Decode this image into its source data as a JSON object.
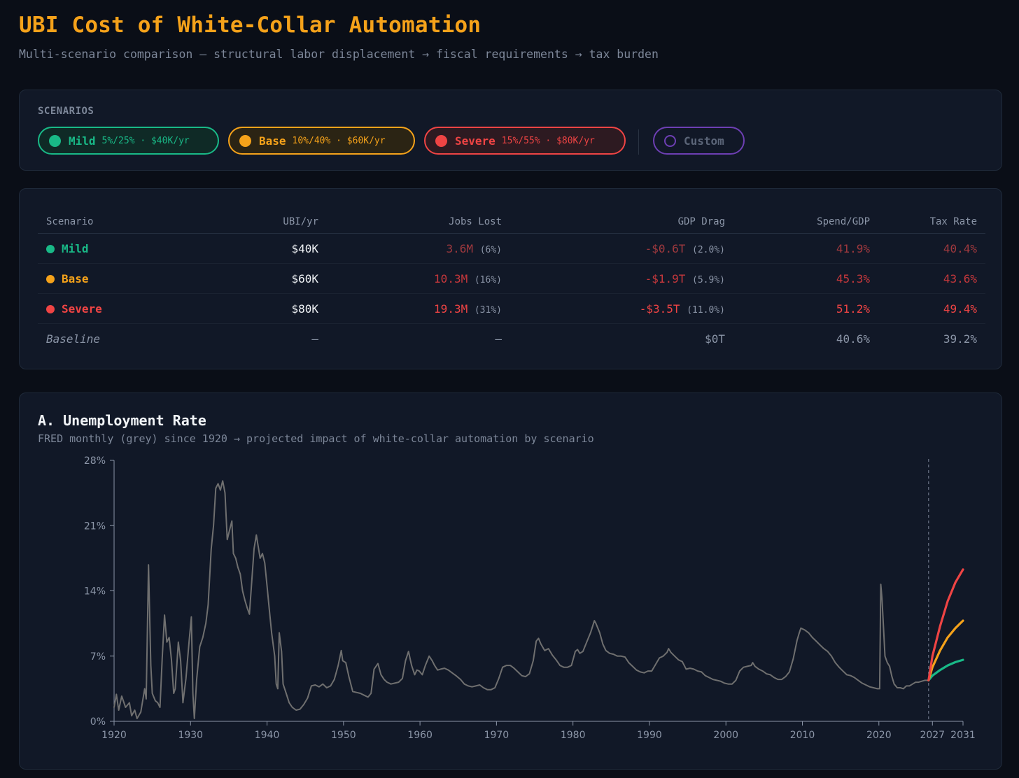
{
  "header": {
    "title": "UBI Cost of White-Collar Automation",
    "subtitle": "Multi-scenario comparison — structural labor displacement → fiscal requirements → tax burden"
  },
  "colors": {
    "mild": "#19b987",
    "base": "#f5a21a",
    "severe": "#ef4444",
    "custom": "#6d3fb3",
    "history": "#6f6f6f"
  },
  "scenarios": {
    "label": "SCENARIOS",
    "items": [
      {
        "name": "Mild",
        "meta": "5%/25% · $40K/yr"
      },
      {
        "name": "Base",
        "meta": "10%/40% · $60K/yr"
      },
      {
        "name": "Severe",
        "meta": "15%/55% · $80K/yr"
      }
    ],
    "custom_label": "Custom"
  },
  "table": {
    "headers": [
      "Scenario",
      "UBI/yr",
      "Jobs Lost",
      "GDP Drag",
      "Spend/GDP",
      "Tax Rate"
    ],
    "rows": [
      {
        "name": "Mild",
        "ubi": "$40K",
        "jobs": "3.6M",
        "jobs_pct": "(6%)",
        "gdp": "-$0.6T",
        "gdp_pct": "(2.0%)",
        "spend": "41.9%",
        "tax": "40.4%"
      },
      {
        "name": "Base",
        "ubi": "$60K",
        "jobs": "10.3M",
        "jobs_pct": "(16%)",
        "gdp": "-$1.9T",
        "gdp_pct": "(5.9%)",
        "spend": "45.3%",
        "tax": "43.6%"
      },
      {
        "name": "Severe",
        "ubi": "$80K",
        "jobs": "19.3M",
        "jobs_pct": "(31%)",
        "gdp": "-$3.5T",
        "gdp_pct": "(11.0%)",
        "spend": "51.2%",
        "tax": "49.4%"
      },
      {
        "name": "Baseline",
        "ubi": "—",
        "jobs": "—",
        "gdp": "$0T",
        "spend": "40.6%",
        "tax": "39.2%"
      }
    ]
  },
  "chart": {
    "title": "A. Unemployment Rate",
    "subtitle": "FRED monthly (grey) since 1920 → projected impact of white-collar automation by scenario"
  },
  "chart_data": {
    "type": "line",
    "title": "A. Unemployment Rate",
    "xlabel": "",
    "ylabel": "",
    "xlim": [
      1920,
      2031
    ],
    "ylim": [
      0,
      28
    ],
    "x_ticks": [
      1920,
      1930,
      1940,
      1950,
      1960,
      1970,
      1980,
      1990,
      2000,
      2010,
      2020,
      2027,
      2031
    ],
    "y_ticks": [
      0,
      7,
      14,
      21,
      28
    ],
    "y_tick_labels": [
      "0%",
      "7%",
      "14%",
      "21%",
      "28%"
    ],
    "projection_start": 2026.5,
    "series": [
      {
        "name": "Historical (FRED)",
        "points": [
          [
            1920,
            1.5
          ],
          [
            1920.3,
            2.9
          ],
          [
            1920.6,
            1.2
          ],
          [
            1921,
            2.7
          ],
          [
            1921.5,
            1.5
          ],
          [
            1922,
            2.0
          ],
          [
            1922.3,
            0.6
          ],
          [
            1922.7,
            1.2
          ],
          [
            1923,
            0.3
          ],
          [
            1923.5,
            1.0
          ],
          [
            1924,
            3.5
          ],
          [
            1924.2,
            2.4
          ],
          [
            1924.5,
            16.8
          ],
          [
            1924.8,
            6.0
          ],
          [
            1925,
            3.0
          ],
          [
            1925.4,
            2.2
          ],
          [
            1925.7,
            2.0
          ],
          [
            1926,
            1.5
          ],
          [
            1926.3,
            6.8
          ],
          [
            1926.6,
            11.4
          ],
          [
            1926.9,
            8.5
          ],
          [
            1927.2,
            9.0
          ],
          [
            1927.5,
            6.6
          ],
          [
            1927.8,
            3.0
          ],
          [
            1928,
            3.5
          ],
          [
            1928.4,
            8.5
          ],
          [
            1928.7,
            6.5
          ],
          [
            1929,
            2.0
          ],
          [
            1929.4,
            4.6
          ],
          [
            1929.8,
            8.5
          ],
          [
            1930.1,
            11.2
          ],
          [
            1930.3,
            3.0
          ],
          [
            1930.5,
            0.3
          ],
          [
            1930.8,
            4.5
          ],
          [
            1931.2,
            8.0
          ],
          [
            1931.6,
            9.0
          ],
          [
            1932,
            10.5
          ],
          [
            1932.3,
            12.5
          ],
          [
            1932.7,
            18.5
          ],
          [
            1933,
            21.0
          ],
          [
            1933.3,
            25.0
          ],
          [
            1933.6,
            25.5
          ],
          [
            1933.9,
            24.8
          ],
          [
            1934.2,
            25.8
          ],
          [
            1934.5,
            24.5
          ],
          [
            1934.8,
            19.5
          ],
          [
            1935.1,
            20.5
          ],
          [
            1935.4,
            21.5
          ],
          [
            1935.6,
            18.0
          ],
          [
            1935.9,
            17.5
          ],
          [
            1936.2,
            16.5
          ],
          [
            1936.5,
            15.8
          ],
          [
            1936.8,
            14.0
          ],
          [
            1937.1,
            13.0
          ],
          [
            1937.4,
            12.2
          ],
          [
            1937.7,
            11.5
          ],
          [
            1938,
            15.0
          ],
          [
            1938.3,
            18.5
          ],
          [
            1938.6,
            20.0
          ],
          [
            1938.8,
            19.0
          ],
          [
            1939.1,
            17.5
          ],
          [
            1939.4,
            18.0
          ],
          [
            1939.7,
            17.0
          ],
          [
            1940,
            14.5
          ],
          [
            1940.3,
            12.0
          ],
          [
            1940.6,
            9.5
          ],
          [
            1941,
            7.0
          ],
          [
            1941.2,
            4.0
          ],
          [
            1941.4,
            3.5
          ],
          [
            1941.6,
            9.5
          ],
          [
            1941.9,
            7.5
          ],
          [
            1942.1,
            4.0
          ],
          [
            1942.5,
            3.0
          ],
          [
            1942.9,
            2.0
          ],
          [
            1943.3,
            1.5
          ],
          [
            1943.8,
            1.2
          ],
          [
            1944.3,
            1.3
          ],
          [
            1944.8,
            1.8
          ],
          [
            1945.3,
            2.5
          ],
          [
            1945.8,
            3.8
          ],
          [
            1946.3,
            3.9
          ],
          [
            1946.8,
            3.7
          ],
          [
            1947.3,
            4.0
          ],
          [
            1947.8,
            3.6
          ],
          [
            1948.3,
            3.8
          ],
          [
            1948.8,
            4.5
          ],
          [
            1949.3,
            6.0
          ],
          [
            1949.7,
            7.6
          ],
          [
            1949.9,
            6.5
          ],
          [
            1950.3,
            6.3
          ],
          [
            1950.7,
            4.8
          ],
          [
            1951.2,
            3.2
          ],
          [
            1951.7,
            3.1
          ],
          [
            1952.2,
            3.0
          ],
          [
            1952.7,
            2.8
          ],
          [
            1953.2,
            2.6
          ],
          [
            1953.6,
            3.0
          ],
          [
            1954,
            5.6
          ],
          [
            1954.5,
            6.2
          ],
          [
            1954.9,
            5.0
          ],
          [
            1955.3,
            4.5
          ],
          [
            1955.7,
            4.2
          ],
          [
            1956.2,
            4.0
          ],
          [
            1956.7,
            4.1
          ],
          [
            1957.2,
            4.2
          ],
          [
            1957.7,
            4.6
          ],
          [
            1958.1,
            6.5
          ],
          [
            1958.5,
            7.5
          ],
          [
            1958.9,
            6.0
          ],
          [
            1959.3,
            5.0
          ],
          [
            1959.6,
            5.5
          ],
          [
            1959.9,
            5.4
          ],
          [
            1960.3,
            5.0
          ],
          [
            1960.7,
            6.0
          ],
          [
            1961.2,
            7.0
          ],
          [
            1961.6,
            6.5
          ],
          [
            1961.9,
            6.0
          ],
          [
            1962.3,
            5.5
          ],
          [
            1962.7,
            5.6
          ],
          [
            1963.2,
            5.7
          ],
          [
            1963.7,
            5.5
          ],
          [
            1964.2,
            5.2
          ],
          [
            1964.7,
            4.9
          ],
          [
            1965.3,
            4.5
          ],
          [
            1965.8,
            4.0
          ],
          [
            1966.3,
            3.8
          ],
          [
            1966.8,
            3.7
          ],
          [
            1967.3,
            3.8
          ],
          [
            1967.8,
            3.9
          ],
          [
            1968.3,
            3.6
          ],
          [
            1968.8,
            3.4
          ],
          [
            1969.3,
            3.4
          ],
          [
            1969.8,
            3.6
          ],
          [
            1970.3,
            4.6
          ],
          [
            1970.8,
            5.8
          ],
          [
            1971.3,
            6.0
          ],
          [
            1971.8,
            6.0
          ],
          [
            1972.3,
            5.7
          ],
          [
            1972.8,
            5.3
          ],
          [
            1973.3,
            4.9
          ],
          [
            1973.8,
            4.8
          ],
          [
            1974.3,
            5.1
          ],
          [
            1974.8,
            6.5
          ],
          [
            1975.2,
            8.6
          ],
          [
            1975.5,
            8.9
          ],
          [
            1975.8,
            8.3
          ],
          [
            1976.3,
            7.6
          ],
          [
            1976.8,
            7.8
          ],
          [
            1977.3,
            7.1
          ],
          [
            1977.8,
            6.6
          ],
          [
            1978.3,
            6.0
          ],
          [
            1978.8,
            5.8
          ],
          [
            1979.3,
            5.8
          ],
          [
            1979.8,
            6.0
          ],
          [
            1980.3,
            7.5
          ],
          [
            1980.6,
            7.7
          ],
          [
            1980.9,
            7.3
          ],
          [
            1981.3,
            7.5
          ],
          [
            1981.8,
            8.5
          ],
          [
            1982.3,
            9.5
          ],
          [
            1982.8,
            10.8
          ],
          [
            1983,
            10.5
          ],
          [
            1983.5,
            9.5
          ],
          [
            1983.9,
            8.3
          ],
          [
            1984.3,
            7.6
          ],
          [
            1984.8,
            7.3
          ],
          [
            1985.3,
            7.2
          ],
          [
            1985.8,
            7.0
          ],
          [
            1986.3,
            7.0
          ],
          [
            1986.8,
            6.9
          ],
          [
            1987.3,
            6.3
          ],
          [
            1987.8,
            5.9
          ],
          [
            1988.3,
            5.5
          ],
          [
            1988.8,
            5.3
          ],
          [
            1989.3,
            5.2
          ],
          [
            1989.8,
            5.4
          ],
          [
            1990.3,
            5.4
          ],
          [
            1990.8,
            6.1
          ],
          [
            1991.3,
            6.8
          ],
          [
            1991.8,
            7.0
          ],
          [
            1992.3,
            7.4
          ],
          [
            1992.5,
            7.8
          ],
          [
            1992.8,
            7.4
          ],
          [
            1993.3,
            7.0
          ],
          [
            1993.8,
            6.6
          ],
          [
            1994.3,
            6.4
          ],
          [
            1994.8,
            5.6
          ],
          [
            1995.3,
            5.7
          ],
          [
            1995.8,
            5.6
          ],
          [
            1996.3,
            5.4
          ],
          [
            1996.8,
            5.3
          ],
          [
            1997.3,
            4.9
          ],
          [
            1997.8,
            4.7
          ],
          [
            1998.3,
            4.5
          ],
          [
            1998.8,
            4.4
          ],
          [
            1999.3,
            4.3
          ],
          [
            1999.8,
            4.1
          ],
          [
            2000.3,
            4.0
          ],
          [
            2000.8,
            4.0
          ],
          [
            2001.3,
            4.4
          ],
          [
            2001.8,
            5.4
          ],
          [
            2002.3,
            5.8
          ],
          [
            2002.8,
            5.9
          ],
          [
            2003.3,
            6.0
          ],
          [
            2003.5,
            6.3
          ],
          [
            2003.8,
            5.9
          ],
          [
            2004.3,
            5.6
          ],
          [
            2004.8,
            5.4
          ],
          [
            2005.3,
            5.1
          ],
          [
            2005.8,
            5.0
          ],
          [
            2006.3,
            4.7
          ],
          [
            2006.8,
            4.5
          ],
          [
            2007.3,
            4.5
          ],
          [
            2007.8,
            4.8
          ],
          [
            2008.3,
            5.3
          ],
          [
            2008.8,
            6.7
          ],
          [
            2009.3,
            8.7
          ],
          [
            2009.6,
            9.5
          ],
          [
            2009.8,
            10.0
          ],
          [
            2010.3,
            9.8
          ],
          [
            2010.8,
            9.5
          ],
          [
            2011.3,
            9.0
          ],
          [
            2011.8,
            8.6
          ],
          [
            2012.3,
            8.2
          ],
          [
            2012.8,
            7.8
          ],
          [
            2013.3,
            7.5
          ],
          [
            2013.8,
            7.0
          ],
          [
            2014.3,
            6.3
          ],
          [
            2014.8,
            5.8
          ],
          [
            2015.3,
            5.4
          ],
          [
            2015.8,
            5.0
          ],
          [
            2016.3,
            4.9
          ],
          [
            2016.8,
            4.7
          ],
          [
            2017.3,
            4.4
          ],
          [
            2017.8,
            4.1
          ],
          [
            2018.3,
            3.9
          ],
          [
            2018.8,
            3.7
          ],
          [
            2019.3,
            3.6
          ],
          [
            2019.8,
            3.5
          ],
          [
            2020.1,
            3.5
          ],
          [
            2020.25,
            14.7
          ],
          [
            2020.4,
            13.2
          ],
          [
            2020.6,
            10.2
          ],
          [
            2020.8,
            7.0
          ],
          [
            2021.1,
            6.3
          ],
          [
            2021.4,
            5.9
          ],
          [
            2021.7,
            4.8
          ],
          [
            2022,
            4.0
          ],
          [
            2022.4,
            3.6
          ],
          [
            2022.8,
            3.6
          ],
          [
            2023.2,
            3.5
          ],
          [
            2023.6,
            3.8
          ],
          [
            2024,
            3.8
          ],
          [
            2024.4,
            4.0
          ],
          [
            2024.8,
            4.2
          ],
          [
            2025.2,
            4.2
          ],
          [
            2025.6,
            4.3
          ],
          [
            2026,
            4.4
          ],
          [
            2026.5,
            4.4
          ]
        ]
      },
      {
        "name": "Mild",
        "color": "#19b987",
        "points": [
          [
            2026.5,
            4.4
          ],
          [
            2027,
            4.9
          ],
          [
            2028,
            5.5
          ],
          [
            2029,
            6.0
          ],
          [
            2030,
            6.35
          ],
          [
            2031,
            6.6
          ]
        ]
      },
      {
        "name": "Base",
        "color": "#f5a21a",
        "points": [
          [
            2026.5,
            4.4
          ],
          [
            2027,
            5.8
          ],
          [
            2028,
            7.6
          ],
          [
            2029,
            9.0
          ],
          [
            2030,
            10.0
          ],
          [
            2031,
            10.8
          ]
        ]
      },
      {
        "name": "Severe",
        "color": "#ef4444",
        "points": [
          [
            2026.5,
            4.4
          ],
          [
            2027,
            7.0
          ],
          [
            2028,
            10.2
          ],
          [
            2029,
            12.9
          ],
          [
            2030,
            14.9
          ],
          [
            2031,
            16.3
          ]
        ]
      }
    ]
  }
}
